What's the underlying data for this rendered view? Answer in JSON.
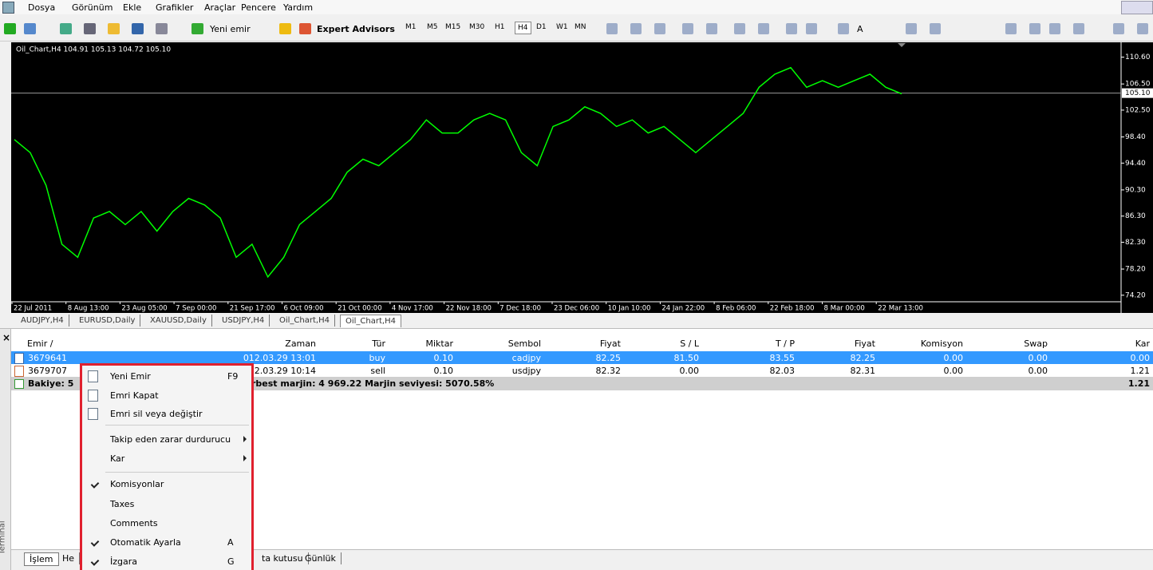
{
  "menu": [
    "Dosya",
    "Görünüm",
    "Ekle",
    "Grafikler",
    "Araçlar",
    "Pencere",
    "Yardım"
  ],
  "toolbar": {
    "new_order": "Yeni emir",
    "expert": "Expert Advisors",
    "timeframes": [
      "M1",
      "M5",
      "M15",
      "M30",
      "H1",
      "H4",
      "D1",
      "W1",
      "MN"
    ],
    "active_timeframe": 5,
    "text_tool": "A"
  },
  "chart": {
    "title": "Oil_Chart,H4 104.91 105.13 104.72 105.10",
    "color": "#00ff00",
    "ylim": [
      73.2,
      112.5
    ],
    "yticks": [
      {
        "value": 110.6,
        "label": "110.60"
      },
      {
        "value": 106.5,
        "label": "106.50"
      },
      {
        "value": 102.5,
        "label": "102.50"
      },
      {
        "value": 98.4,
        "label": "98.40"
      },
      {
        "value": 94.4,
        "label": "94.40"
      },
      {
        "value": 90.3,
        "label": "90.30"
      },
      {
        "value": 86.3,
        "label": "86.30"
      },
      {
        "value": 82.3,
        "label": "82.30"
      },
      {
        "value": 78.2,
        "label": "78.20"
      },
      {
        "value": 74.2,
        "label": "74.20"
      }
    ],
    "current_price": {
      "value": 105.1,
      "label": "105.10"
    },
    "xlabels": [
      "22 Jul 2011",
      "8 Aug 13:00",
      "23 Aug 05:00",
      "7 Sep 00:00",
      "21 Sep 17:00",
      "6 Oct 09:00",
      "21 Oct 00:00",
      "4 Nov 17:00",
      "22 Nov 18:00",
      "7 Dec 18:00",
      "23 Dec 06:00",
      "10 Jan 10:00",
      "24 Jan 22:00",
      "8 Feb 06:00",
      "22 Feb 18:00",
      "8 Mar 00:00",
      "22 Mar 13:00"
    ],
    "values": [
      98,
      96,
      91,
      82,
      80,
      86,
      87,
      85,
      87,
      84,
      87,
      89,
      88,
      86,
      80,
      82,
      77,
      80,
      85,
      87,
      89,
      93,
      95,
      94,
      96,
      98,
      101,
      99,
      99,
      101,
      102,
      101,
      96,
      94,
      100,
      101,
      103,
      102,
      100,
      101,
      99,
      100,
      98,
      96,
      98,
      100,
      102,
      106,
      108,
      109,
      106,
      107,
      106,
      107,
      108,
      106,
      105
    ]
  },
  "chart_tabs": [
    "AUDJPY,H4",
    "EURUSD,Daily",
    "XAUUSD,Daily",
    "USDJPY,H4",
    "Oil_Chart,H4",
    "Oil_Chart,H4"
  ],
  "active_tab": 5,
  "terminal": {
    "close": "×",
    "side_label": "Terminal",
    "columns": [
      "Emir /",
      "Zaman",
      "Tür",
      "Miktar",
      "Sembol",
      "Fiyat",
      "S / L",
      "T / P",
      "Fiyat",
      "Komisyon",
      "Swap",
      "Kar"
    ],
    "rows": [
      [
        "3679641",
        "012.03.29 13:01",
        "buy",
        "0.10",
        "cadjpy",
        "82.25",
        "81.50",
        "83.55",
        "82.25",
        "0.00",
        "0.00",
        "0.00"
      ],
      [
        "3679707",
        "012.03.29 10:14",
        "sell",
        "0.10",
        "usdjpy",
        "82.32",
        "0.00",
        "82.03",
        "82.31",
        "0.00",
        "0.00",
        "1.21"
      ]
    ],
    "selected_row": 0,
    "summary": {
      "left": "Bakiye: 5",
      "middle": "rbest marjin: 4 969.22  Marjin seviyesi: 5070.58%",
      "kar": "1.21"
    },
    "tabs": [
      "İşlem",
      "He",
      "ta kutusu",
      "Günlük"
    ]
  },
  "context_menu": [
    {
      "label": "Yeni Emir",
      "shortcut": "F9",
      "icon": true
    },
    {
      "label": "Emri Kapat",
      "icon": true
    },
    {
      "label": "Emri sil veya değiştir",
      "icon": true
    },
    {
      "label": "Takip eden zarar durdurucu",
      "submenu": true
    },
    {
      "label": "Kar",
      "submenu": true
    },
    {
      "label": "Komisyonlar",
      "checked": true
    },
    {
      "label": "Taxes"
    },
    {
      "label": "Comments"
    },
    {
      "label": "Otomatik Ayarla",
      "shortcut": "A",
      "checked": true
    },
    {
      "label": "İzgara",
      "shortcut": "G",
      "checked": true
    }
  ]
}
